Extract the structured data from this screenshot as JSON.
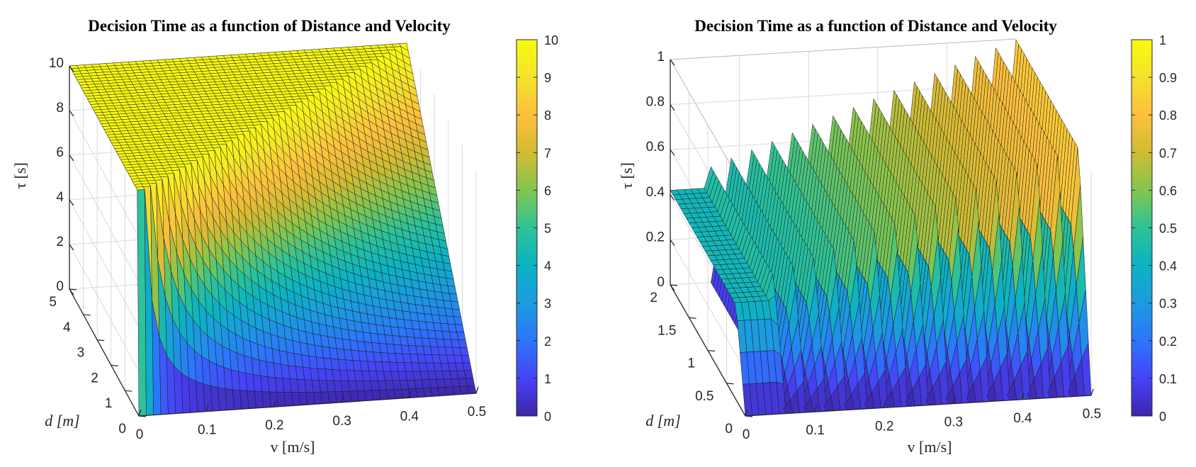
{
  "chart_data": [
    {
      "type": "surface3d",
      "title": "Decision Time as a function of Distance and Velocity",
      "xlabel": "v [m/s]",
      "ylabel": "d [m]",
      "zlabel": "τ [s]",
      "xlim": [
        0,
        0.5
      ],
      "ylim": [
        0,
        5
      ],
      "zlim": [
        0,
        10
      ],
      "xticks": [
        "0",
        "0.1",
        "0.2",
        "0.3",
        "0.4",
        "0.5"
      ],
      "yticks": [
        "0",
        "1",
        "2",
        "3",
        "4",
        "5"
      ],
      "zticks": [
        "0",
        "2",
        "4",
        "6",
        "8",
        "10"
      ],
      "colorbar": {
        "min": 0,
        "max": 10,
        "ticks": [
          "0",
          "1",
          "2",
          "3",
          "4",
          "5",
          "6",
          "7",
          "8",
          "9",
          "10"
        ]
      },
      "colormap": "parula",
      "grid": true,
      "surface": "tau = min(d / v, 10), v in [0, 0.5], d in [0, 5]"
    },
    {
      "type": "surface3d",
      "title": "Decision Time as a function of Distance and Velocity",
      "xlabel": "v [m/s]",
      "ylabel": "d [m]",
      "zlabel": "τ [s]",
      "xlim": [
        0,
        0.5
      ],
      "ylim": [
        0,
        2
      ],
      "zlim": [
        0,
        1
      ],
      "xticks": [
        "0",
        "0.1",
        "0.2",
        "0.3",
        "0.4",
        "0.5"
      ],
      "yticks": [
        "0",
        "0.5",
        "1",
        "1.5",
        "2"
      ],
      "zticks": [
        "0",
        "0.2",
        "0.4",
        "0.6",
        "0.8",
        "1"
      ],
      "colorbar": {
        "min": 0,
        "max": 1,
        "ticks": [
          "0",
          "0.1",
          "0.2",
          "0.3",
          "0.4",
          "0.5",
          "0.6",
          "0.7",
          "0.8",
          "0.9",
          "1"
        ]
      },
      "colormap": "parula",
      "grid": true,
      "surface": "sawtooth: tau = fractional decision time, rises along v and resets to 0"
    }
  ],
  "colors": {
    "parula": [
      "#3e26a8",
      "#4743f8",
      "#2c76fa",
      "#1c9bdf",
      "#0bb3c2",
      "#2dc297",
      "#81c650",
      "#d2bb33",
      "#fdbf3d",
      "#f5e22c",
      "#f9fb0e"
    ],
    "grid": "#d9d9d9",
    "axis": "#262626"
  }
}
